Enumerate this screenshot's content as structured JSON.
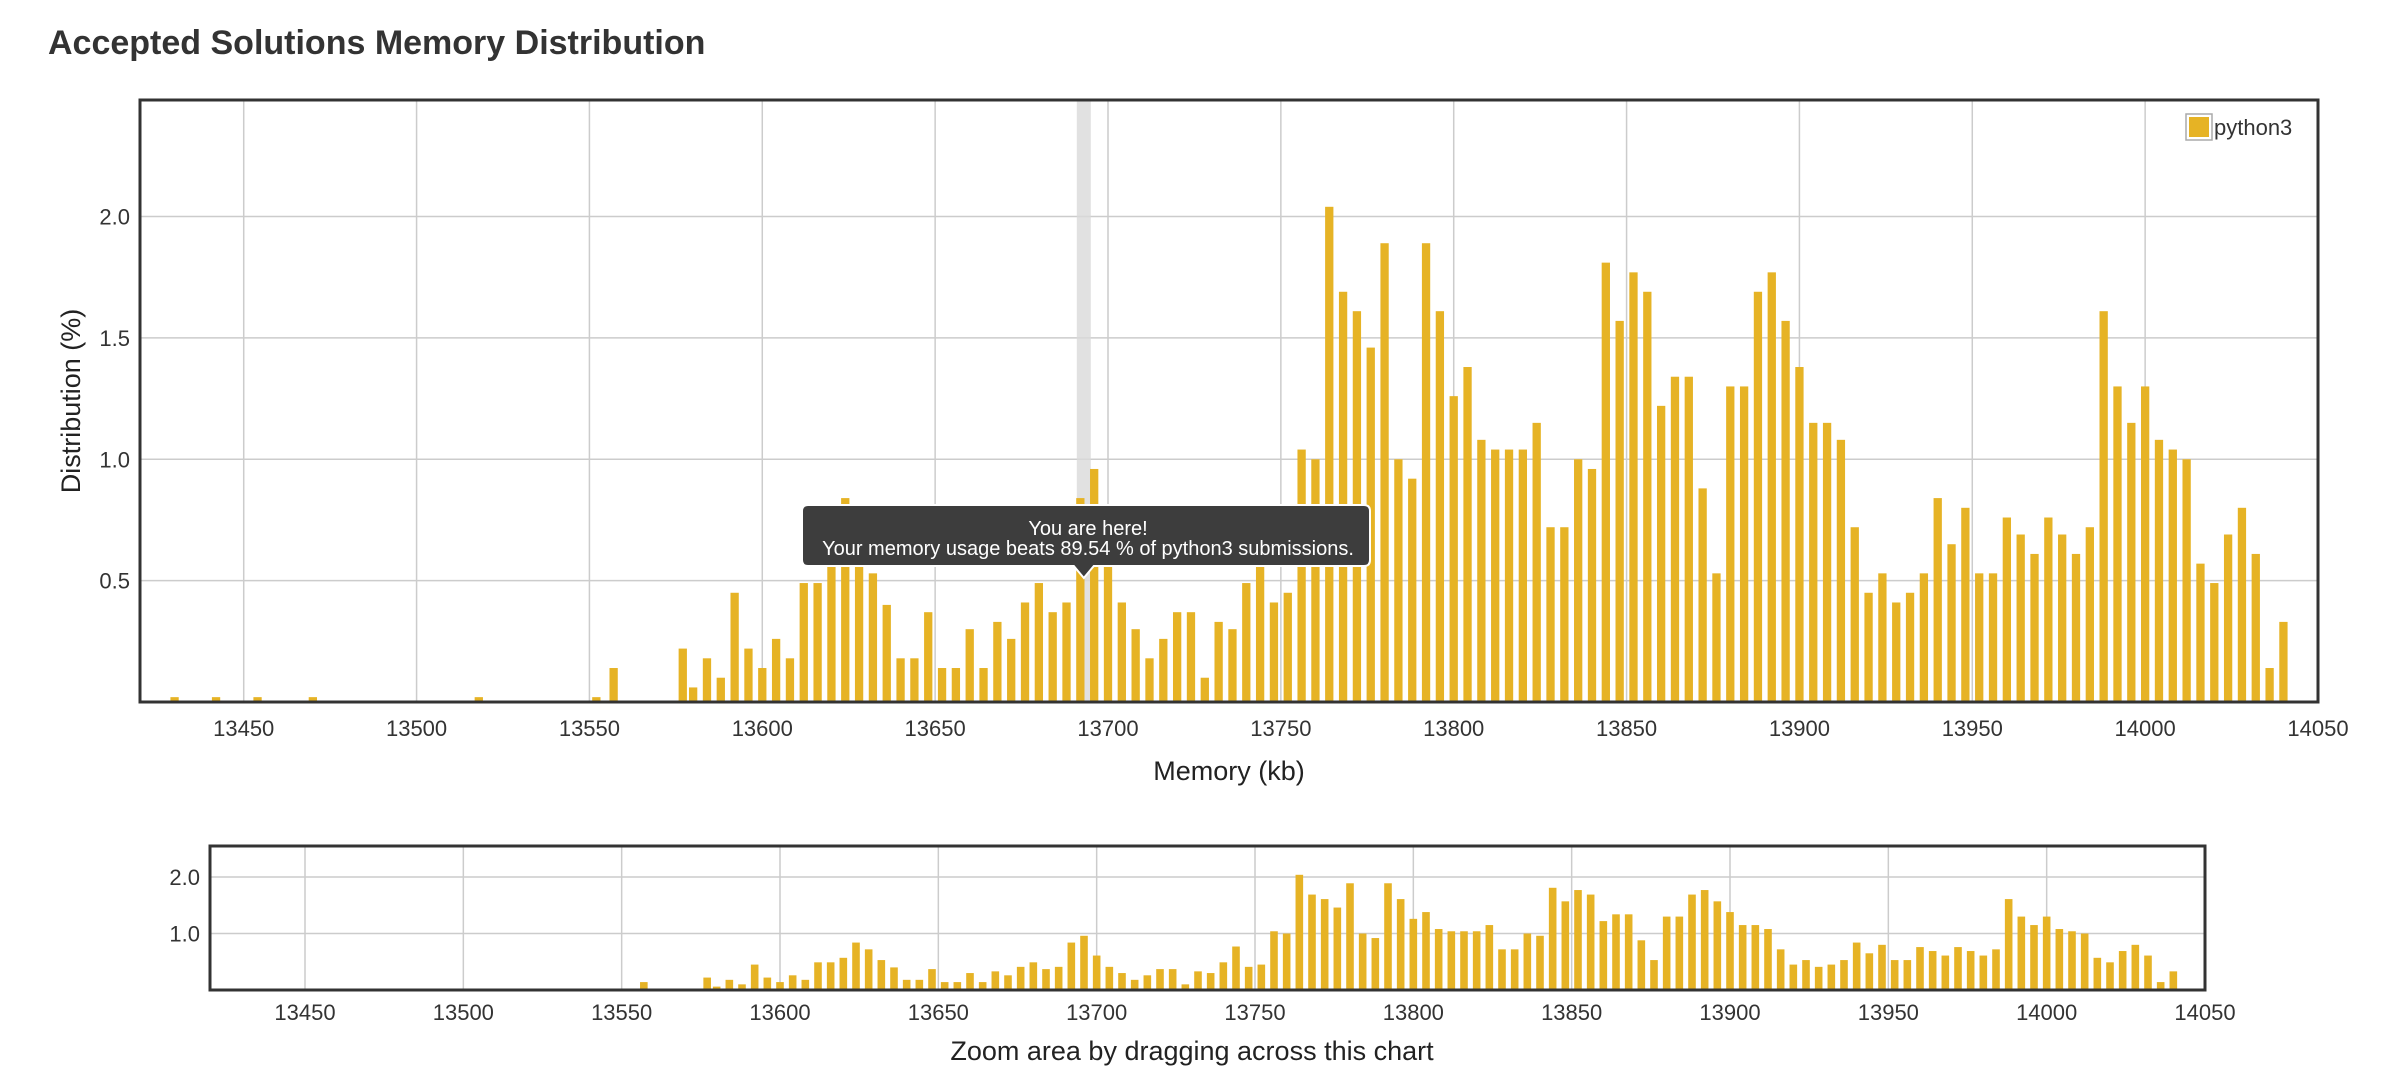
{
  "title": "Accepted Solutions Memory Distribution",
  "colors": {
    "bar": "#e6b325",
    "frame": "#333333",
    "grid": "#cccccc",
    "tooltip_bg": "#3d3d3d",
    "highlight": "#d9d9d9"
  },
  "chart_data": {
    "type": "bar",
    "xlabel": "Memory (kb)",
    "ylabel": "Distribution (%)",
    "xlim": [
      13420,
      14050
    ],
    "ylim": [
      0,
      2.48
    ],
    "x_ticks": [
      13450,
      13500,
      13550,
      13600,
      13650,
      13700,
      13750,
      13800,
      13850,
      13900,
      13950,
      14000,
      14050
    ],
    "y_ticks": [
      0.5,
      1.0,
      1.5,
      2.0
    ],
    "grid": true,
    "legend": {
      "position": "top-right",
      "entries": [
        "python3"
      ]
    },
    "series": [
      {
        "name": "python3",
        "x": [
          13430,
          13442,
          13454,
          13470,
          13518,
          13552,
          13557,
          13577,
          13580,
          13584,
          13588,
          13592,
          13596,
          13600,
          13604,
          13608,
          13612,
          13616,
          13620,
          13624,
          13628,
          13632,
          13636,
          13640,
          13644,
          13648,
          13652,
          13656,
          13660,
          13664,
          13668,
          13672,
          13676,
          13680,
          13684,
          13688,
          13692,
          13696,
          13700,
          13704,
          13708,
          13712,
          13716,
          13720,
          13724,
          13728,
          13732,
          13736,
          13740,
          13744,
          13748,
          13752,
          13756,
          13760,
          13764,
          13768,
          13772,
          13776,
          13780,
          13784,
          13788,
          13792,
          13796,
          13800,
          13804,
          13808,
          13812,
          13816,
          13820,
          13824,
          13828,
          13832,
          13836,
          13840,
          13844,
          13848,
          13852,
          13856,
          13860,
          13864,
          13868,
          13872,
          13876,
          13880,
          13884,
          13888,
          13892,
          13896,
          13900,
          13904,
          13908,
          13912,
          13916,
          13920,
          13924,
          13928,
          13932,
          13936,
          13940,
          13944,
          13948,
          13952,
          13956,
          13960,
          13964,
          13968,
          13972,
          13976,
          13980,
          13984,
          13988,
          13992,
          13996,
          14000,
          14004,
          14008,
          14012,
          14016,
          14020,
          14024,
          14028,
          14032,
          14036,
          14040
        ],
        "values": [
          0.02,
          0.02,
          0.02,
          0.02,
          0.02,
          0.02,
          0.14,
          0.22,
          0.06,
          0.18,
          0.1,
          0.45,
          0.22,
          0.14,
          0.26,
          0.18,
          0.49,
          0.49,
          0.57,
          0.84,
          0.72,
          0.53,
          0.4,
          0.18,
          0.18,
          0.37,
          0.14,
          0.14,
          0.3,
          0.14,
          0.33,
          0.26,
          0.41,
          0.49,
          0.37,
          0.41,
          0.84,
          0.96,
          0.61,
          0.41,
          0.3,
          0.18,
          0.26,
          0.37,
          0.37,
          0.1,
          0.33,
          0.3,
          0.49,
          0.77,
          0.41,
          0.45,
          1.04,
          1.0,
          2.04,
          1.69,
          1.61,
          1.46,
          1.89,
          1.0,
          0.92,
          1.89,
          1.61,
          1.26,
          1.38,
          1.08,
          1.04,
          1.04,
          1.04,
          1.15,
          0.72,
          0.72,
          1.0,
          0.96,
          1.81,
          1.57,
          1.77,
          1.69,
          1.22,
          1.34,
          1.34,
          0.88,
          0.53,
          1.3,
          1.3,
          1.69,
          1.77,
          1.57,
          1.38,
          1.15,
          1.15,
          1.08,
          0.72,
          0.45,
          0.53,
          0.41,
          0.45,
          0.53,
          0.84,
          0.65,
          0.8,
          0.53,
          0.53,
          0.76,
          0.69,
          0.61,
          0.76,
          0.69,
          0.61,
          0.72,
          1.61,
          1.3,
          1.15,
          1.3,
          1.08,
          1.04,
          1.0,
          0.57,
          0.49,
          0.69,
          0.8,
          0.61,
          0.14,
          0.33
        ]
      }
    ],
    "annotation": {
      "x": 13693,
      "line1": "You are here!",
      "line2": "Your memory usage beats 89.54 % of python3 submissions."
    },
    "navigator": {
      "label": "Zoom area by dragging across this chart",
      "y_ticks": [
        1.0,
        2.0
      ]
    }
  }
}
